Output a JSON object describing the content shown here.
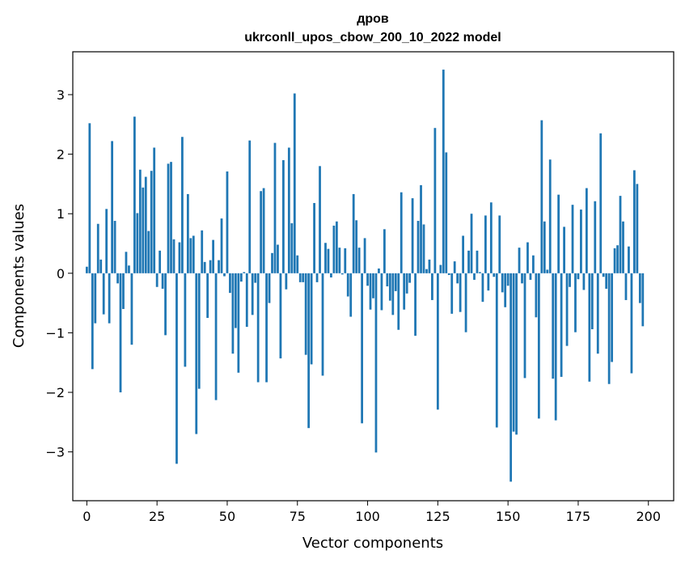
{
  "chart_data": {
    "type": "bar",
    "title": "дров",
    "subtitle": "ukrconll_upos_cbow_200_10_2022 model",
    "xlabel": "Vector components",
    "ylabel": "Components values",
    "xlim": [
      -5,
      209
    ],
    "ylim": [
      -3.82,
      3.72
    ],
    "xticks": [
      0,
      25,
      50,
      75,
      100,
      125,
      150,
      175,
      200
    ],
    "yticks": [
      -3,
      -2,
      -1,
      0,
      1,
      2,
      3
    ],
    "bar_color": "#1f77b4",
    "grid": false,
    "legend": "none",
    "values": [
      0.11,
      2.52,
      -1.61,
      -0.84,
      0.83,
      0.23,
      -0.69,
      1.08,
      -0.84,
      2.22,
      0.88,
      -0.17,
      -2.0,
      -0.6,
      0.36,
      0.13,
      -1.2,
      2.63,
      1.01,
      1.74,
      1.44,
      1.62,
      0.71,
      1.72,
      2.11,
      -0.23,
      0.38,
      -0.26,
      -1.04,
      1.84,
      1.87,
      0.57,
      -3.2,
      0.52,
      2.29,
      -1.57,
      1.33,
      0.59,
      0.63,
      -2.7,
      -1.94,
      0.72,
      0.19,
      -0.75,
      0.22,
      0.56,
      -2.13,
      0.22,
      0.92,
      -0.05,
      1.71,
      -0.33,
      -1.35,
      -0.92,
      -1.67,
      -0.14,
      0.02,
      -0.9,
      2.23,
      -0.7,
      -0.16,
      -1.83,
      1.38,
      1.43,
      -1.83,
      -0.5,
      0.34,
      2.19,
      0.48,
      -1.43,
      1.9,
      -0.27,
      2.11,
      0.84,
      3.02,
      0.3,
      -0.15,
      -0.15,
      -1.37,
      -2.6,
      -1.53,
      1.18,
      -0.15,
      1.8,
      -1.72,
      0.51,
      0.41,
      -0.07,
      0.8,
      0.87,
      0.43,
      -0.02,
      0.42,
      -0.39,
      -0.73,
      1.33,
      0.89,
      0.43,
      -2.52,
      0.59,
      -0.21,
      -0.61,
      -0.42,
      -3.01,
      0.08,
      -0.62,
      0.74,
      -0.22,
      -0.46,
      -0.7,
      -0.3,
      -0.95,
      1.36,
      -0.61,
      -0.34,
      -0.16,
      1.26,
      -1.05,
      0.88,
      1.48,
      0.82,
      0.07,
      0.23,
      -0.45,
      2.44,
      -2.29,
      0.14,
      3.42,
      2.03,
      -0.03,
      -0.68,
      0.2,
      -0.17,
      -0.65,
      0.63,
      -0.99,
      0.38,
      1.0,
      -0.11,
      0.38,
      0.02,
      -0.48,
      0.97,
      -0.29,
      1.19,
      -0.06,
      -2.59,
      0.97,
      -0.32,
      -0.57,
      -0.21,
      -3.5,
      -2.66,
      -2.71,
      0.43,
      -0.17,
      -1.76,
      0.52,
      -0.11,
      0.3,
      -0.74,
      -2.44,
      2.57,
      0.87,
      0.06,
      1.91,
      -1.77,
      -2.47,
      1.32,
      -1.74,
      0.78,
      -1.22,
      -0.23,
      1.15,
      -0.99,
      -0.1,
      1.07,
      -0.28,
      1.43,
      -1.82,
      -0.94,
      1.21,
      -1.35,
      2.35,
      -0.06,
      -0.26,
      -1.86,
      -1.49,
      0.42,
      0.47,
      1.3,
      0.87,
      -0.45,
      0.45,
      -1.68,
      1.73,
      1.5,
      -0.5,
      -0.89
    ]
  }
}
